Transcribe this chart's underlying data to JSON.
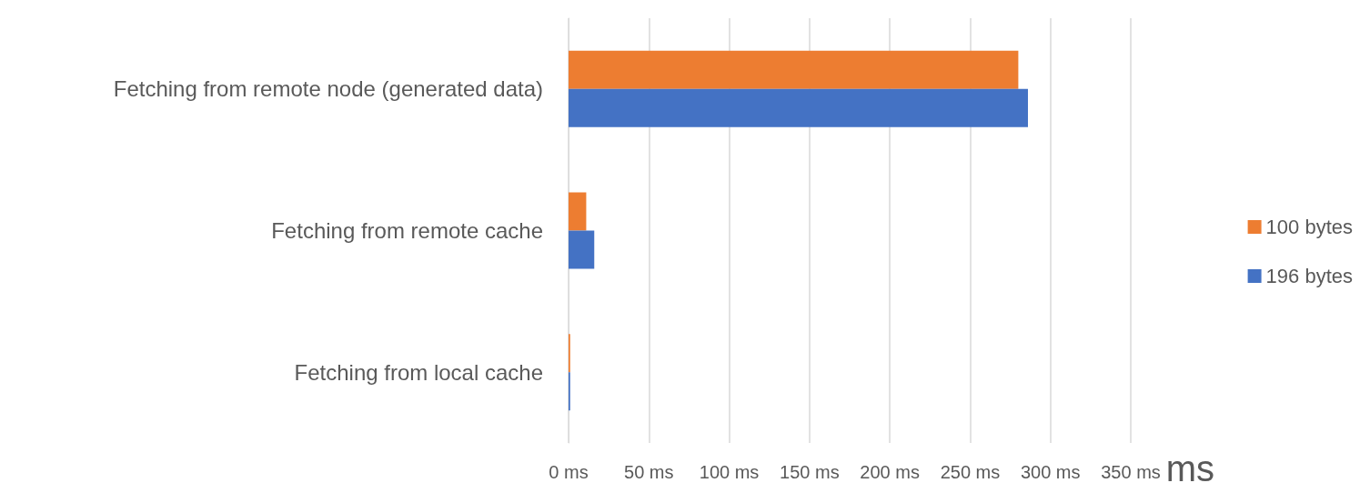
{
  "chart_data": {
    "type": "bar",
    "orientation": "horizontal",
    "categories": [
      "Fetching from remote node (generated data)",
      "Fetching from remote cache",
      "Fetching from local cache"
    ],
    "series": [
      {
        "name": "100 bytes",
        "color": "#ed7d31",
        "values": [
          280,
          11,
          1
        ]
      },
      {
        "name": "196 bytes",
        "color": "#4472c4",
        "values": [
          286,
          16,
          1
        ]
      }
    ],
    "xlabel": "ms",
    "xlim": [
      0,
      350
    ],
    "xticks": [
      {
        "value": 0,
        "label": "0 ms"
      },
      {
        "value": 50,
        "label": "50 ms"
      },
      {
        "value": 100,
        "label": "100 ms"
      },
      {
        "value": 150,
        "label": "150 ms"
      },
      {
        "value": 200,
        "label": "200 ms"
      },
      {
        "value": 250,
        "label": "250 ms"
      },
      {
        "value": 300,
        "label": "300 ms"
      },
      {
        "value": 350,
        "label": "350 ms"
      }
    ],
    "grid": "x",
    "legend": "right"
  }
}
